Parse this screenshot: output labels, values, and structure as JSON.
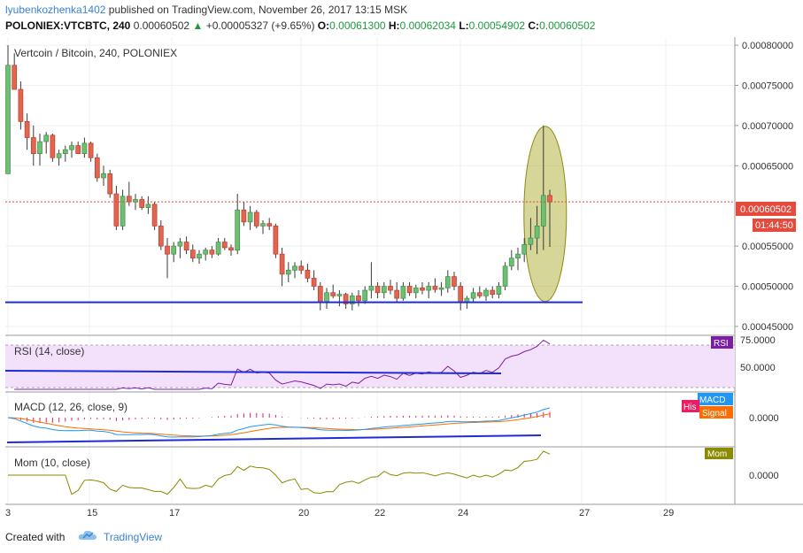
{
  "header": {
    "author": "lyubenkozhenka1402",
    "published_text": "published on TradingView.com, November 26, 2017 13:15 MSK",
    "symbol": "POLONIEX:VTCBTC, 240",
    "last": "0.00060502",
    "change": "+0.00005327 (+9.65%)",
    "open_label": "O:",
    "open": "0.00061300",
    "high_label": "H:",
    "high": "0.00062034",
    "low_label": "L:",
    "low": "0.00054902",
    "close_label": "C:",
    "close": "0.00060502"
  },
  "main_pane": {
    "title": "Vertcoin / Bitcoin, 240, POLONIEX",
    "price_ticks": [
      "0.00080000",
      "0.00075000",
      "0.00070000",
      "0.00065000",
      "0.00055000",
      "0.00050000",
      "0.00045000"
    ],
    "last_price_label": "0.00060502",
    "countdown_label": "01:44:50"
  },
  "rsi_pane": {
    "title": "RSI (14, close)",
    "badge": "RSI",
    "ticks": [
      "75.0000",
      "50.0000"
    ]
  },
  "macd_pane": {
    "title": "MACD (12, 26, close, 9)",
    "badge_macd": "MACD",
    "badge_hist": "His",
    "badge_signal": "Signal",
    "ticks": [
      "0.0000"
    ]
  },
  "mom_pane": {
    "title": "Mom (10, close)",
    "badge": "Mom",
    "ticks": [
      "0.0000"
    ]
  },
  "time_axis": {
    "ticks": [
      "3",
      "15",
      "17",
      "20",
      "22",
      "24",
      "27",
      "29"
    ]
  },
  "footer": {
    "created_with": "Created with",
    "brand": "TradingView"
  },
  "colors": {
    "up": "#26a69a",
    "down": "#ef5350",
    "support_line": "#1f2bd6",
    "ellipse_fill": "#a3a51d",
    "rsi": "#7b1fa2",
    "macd": "#2196f3",
    "signal": "#ff6d00",
    "mom": "#8b8b00",
    "last_price": "#e54a3c"
  },
  "chart_data": {
    "type": "candlestick",
    "title": "Vertcoin / Bitcoin, 240, POLONIEX",
    "y_range": [
      0.00044,
      0.00081
    ],
    "candles": [
      {
        "o": 0.00064,
        "h": 0.0008,
        "l": 0.00064,
        "c": 0.000775
      },
      {
        "o": 0.000775,
        "h": 0.00079,
        "l": 0.000745,
        "c": 0.000745
      },
      {
        "o": 0.000745,
        "h": 0.000755,
        "l": 0.000695,
        "c": 0.000705
      },
      {
        "o": 0.000705,
        "h": 0.000715,
        "l": 0.00067,
        "c": 0.000685
      },
      {
        "o": 0.000685,
        "h": 0.0007,
        "l": 0.00065,
        "c": 0.000665
      },
      {
        "o": 0.000665,
        "h": 0.00069,
        "l": 0.00065,
        "c": 0.00068
      },
      {
        "o": 0.00068,
        "h": 0.000692,
        "l": 0.000665,
        "c": 0.000688
      },
      {
        "o": 0.000688,
        "h": 0.00069,
        "l": 0.000655,
        "c": 0.00066
      },
      {
        "o": 0.00066,
        "h": 0.00067,
        "l": 0.00065,
        "c": 0.000665
      },
      {
        "o": 0.000665,
        "h": 0.000675,
        "l": 0.000655,
        "c": 0.00067
      },
      {
        "o": 0.00067,
        "h": 0.00068,
        "l": 0.00066,
        "c": 0.000675
      },
      {
        "o": 0.000675,
        "h": 0.00068,
        "l": 0.000665,
        "c": 0.000665
      },
      {
        "o": 0.000665,
        "h": 0.000685,
        "l": 0.00066,
        "c": 0.000678
      },
      {
        "o": 0.000678,
        "h": 0.00068,
        "l": 0.000655,
        "c": 0.00066
      },
      {
        "o": 0.00066,
        "h": 0.000665,
        "l": 0.00063,
        "c": 0.000635
      },
      {
        "o": 0.000635,
        "h": 0.00065,
        "l": 0.000625,
        "c": 0.00064
      },
      {
        "o": 0.00064,
        "h": 0.000645,
        "l": 0.00061,
        "c": 0.000615
      },
      {
        "o": 0.000615,
        "h": 0.000625,
        "l": 0.00057,
        "c": 0.000575
      },
      {
        "o": 0.000575,
        "h": 0.00062,
        "l": 0.00057,
        "c": 0.000612
      },
      {
        "o": 0.000612,
        "h": 0.00063,
        "l": 0.0006,
        "c": 0.000605
      },
      {
        "o": 0.000605,
        "h": 0.000615,
        "l": 0.000595,
        "c": 0.000608
      },
      {
        "o": 0.000608,
        "h": 0.000612,
        "l": 0.000595,
        "c": 0.000598
      },
      {
        "o": 0.000598,
        "h": 0.000612,
        "l": 0.00059,
        "c": 0.000602
      },
      {
        "o": 0.000602,
        "h": 0.000605,
        "l": 0.00057,
        "c": 0.000575
      },
      {
        "o": 0.000575,
        "h": 0.000582,
        "l": 0.000545,
        "c": 0.00055
      },
      {
        "o": 0.00055,
        "h": 0.00056,
        "l": 0.00051,
        "c": 0.00054
      },
      {
        "o": 0.00054,
        "h": 0.000555,
        "l": 0.00053,
        "c": 0.00055
      },
      {
        "o": 0.00055,
        "h": 0.00056,
        "l": 0.000535,
        "c": 0.000555
      },
      {
        "o": 0.000555,
        "h": 0.000562,
        "l": 0.00054,
        "c": 0.000545
      },
      {
        "o": 0.000545,
        "h": 0.000552,
        "l": 0.00053,
        "c": 0.000535
      },
      {
        "o": 0.000535,
        "h": 0.000545,
        "l": 0.000528,
        "c": 0.00054
      },
      {
        "o": 0.00054,
        "h": 0.000548,
        "l": 0.000532,
        "c": 0.000545
      },
      {
        "o": 0.000545,
        "h": 0.00055,
        "l": 0.000535,
        "c": 0.00054
      },
      {
        "o": 0.00054,
        "h": 0.00056,
        "l": 0.000538,
        "c": 0.000555
      },
      {
        "o": 0.000555,
        "h": 0.00056,
        "l": 0.000545,
        "c": 0.000548
      },
      {
        "o": 0.000548,
        "h": 0.000552,
        "l": 0.000538,
        "c": 0.000545
      },
      {
        "o": 0.000545,
        "h": 0.000615,
        "l": 0.00054,
        "c": 0.000595
      },
      {
        "o": 0.000595,
        "h": 0.000605,
        "l": 0.000575,
        "c": 0.00058
      },
      {
        "o": 0.00058,
        "h": 0.0006,
        "l": 0.00057,
        "c": 0.000592
      },
      {
        "o": 0.000592,
        "h": 0.000595,
        "l": 0.000572,
        "c": 0.000575
      },
      {
        "o": 0.000575,
        "h": 0.000582,
        "l": 0.000565,
        "c": 0.000578
      },
      {
        "o": 0.000578,
        "h": 0.000585,
        "l": 0.00057,
        "c": 0.000575
      },
      {
        "o": 0.000575,
        "h": 0.000578,
        "l": 0.000535,
        "c": 0.00054
      },
      {
        "o": 0.00054,
        "h": 0.000548,
        "l": 0.0005,
        "c": 0.000515
      },
      {
        "o": 0.000515,
        "h": 0.00053,
        "l": 0.000505,
        "c": 0.00052
      },
      {
        "o": 0.00052,
        "h": 0.00053,
        "l": 0.00051,
        "c": 0.000525
      },
      {
        "o": 0.000525,
        "h": 0.000532,
        "l": 0.000515,
        "c": 0.00052
      },
      {
        "o": 0.00052,
        "h": 0.000528,
        "l": 0.000505,
        "c": 0.00051
      },
      {
        "o": 0.00051,
        "h": 0.00052,
        "l": 0.000495,
        "c": 0.0005
      },
      {
        "o": 0.0005,
        "h": 0.000505,
        "l": 0.00047,
        "c": 0.00048
      },
      {
        "o": 0.00048,
        "h": 0.000498,
        "l": 0.000472,
        "c": 0.000492
      },
      {
        "o": 0.000492,
        "h": 0.000502,
        "l": 0.000485,
        "c": 0.000488
      },
      {
        "o": 0.000488,
        "h": 0.000495,
        "l": 0.000475,
        "c": 0.00049
      },
      {
        "o": 0.00049,
        "h": 0.000492,
        "l": 0.000472,
        "c": 0.000478
      },
      {
        "o": 0.000478,
        "h": 0.000492,
        "l": 0.00047,
        "c": 0.000488
      },
      {
        "o": 0.000488,
        "h": 0.000495,
        "l": 0.000475,
        "c": 0.000482
      },
      {
        "o": 0.000482,
        "h": 0.0005,
        "l": 0.000478,
        "c": 0.000495
      },
      {
        "o": 0.000495,
        "h": 0.00053,
        "l": 0.000485,
        "c": 0.0005
      },
      {
        "o": 0.0005,
        "h": 0.000505,
        "l": 0.000485,
        "c": 0.000492
      },
      {
        "o": 0.000492,
        "h": 0.000505,
        "l": 0.000485,
        "c": 0.0005
      },
      {
        "o": 0.0005,
        "h": 0.000508,
        "l": 0.00049,
        "c": 0.000495
      },
      {
        "o": 0.000495,
        "h": 0.000505,
        "l": 0.00048,
        "c": 0.000485
      },
      {
        "o": 0.000485,
        "h": 0.000505,
        "l": 0.000482,
        "c": 0.0005
      },
      {
        "o": 0.0005,
        "h": 0.000505,
        "l": 0.000488,
        "c": 0.000492
      },
      {
        "o": 0.000492,
        "h": 0.000502,
        "l": 0.000485,
        "c": 0.000498
      },
      {
        "o": 0.000498,
        "h": 0.000505,
        "l": 0.00049,
        "c": 0.000495
      },
      {
        "o": 0.000495,
        "h": 0.000505,
        "l": 0.000485,
        "c": 0.0005
      },
      {
        "o": 0.0005,
        "h": 0.00051,
        "l": 0.000492,
        "c": 0.000496
      },
      {
        "o": 0.000496,
        "h": 0.000505,
        "l": 0.000488,
        "c": 0.000498
      },
      {
        "o": 0.000498,
        "h": 0.00052,
        "l": 0.000492,
        "c": 0.000512
      },
      {
        "o": 0.000512,
        "h": 0.000518,
        "l": 0.000495,
        "c": 0.0005
      },
      {
        "o": 0.0005,
        "h": 0.000505,
        "l": 0.00047,
        "c": 0.00048
      },
      {
        "o": 0.00048,
        "h": 0.000488,
        "l": 0.000472,
        "c": 0.000485
      },
      {
        "o": 0.000485,
        "h": 0.000498,
        "l": 0.00048,
        "c": 0.000492
      },
      {
        "o": 0.000492,
        "h": 0.0005,
        "l": 0.000485,
        "c": 0.000488
      },
      {
        "o": 0.000488,
        "h": 0.000498,
        "l": 0.000482,
        "c": 0.000495
      },
      {
        "o": 0.000495,
        "h": 0.0005,
        "l": 0.000485,
        "c": 0.00049
      },
      {
        "o": 0.00049,
        "h": 0.000505,
        "l": 0.000485,
        "c": 0.0005
      },
      {
        "o": 0.0005,
        "h": 0.00053,
        "l": 0.000495,
        "c": 0.000525
      },
      {
        "o": 0.000525,
        "h": 0.000545,
        "l": 0.00052,
        "c": 0.000535
      },
      {
        "o": 0.000535,
        "h": 0.000548,
        "l": 0.00052,
        "c": 0.00054
      },
      {
        "o": 0.00054,
        "h": 0.00056,
        "l": 0.00053,
        "c": 0.000552
      },
      {
        "o": 0.000552,
        "h": 0.000585,
        "l": 0.000545,
        "c": 0.00056
      },
      {
        "o": 0.00056,
        "h": 0.0006,
        "l": 0.00054,
        "c": 0.000575
      },
      {
        "o": 0.000575,
        "h": 0.0007,
        "l": 0.000545,
        "c": 0.000613
      },
      {
        "o": 0.000613,
        "h": 0.00062,
        "l": 0.000549,
        "c": 0.000605
      }
    ],
    "annotations": [
      {
        "type": "support_line",
        "price": 0.00048
      },
      {
        "type": "ellipse_highlight",
        "center_price": 0.00059
      }
    ],
    "indicators": [
      "RSI (14, close)",
      "MACD (12, 26, close, 9)",
      "Mom (10, close)"
    ]
  }
}
